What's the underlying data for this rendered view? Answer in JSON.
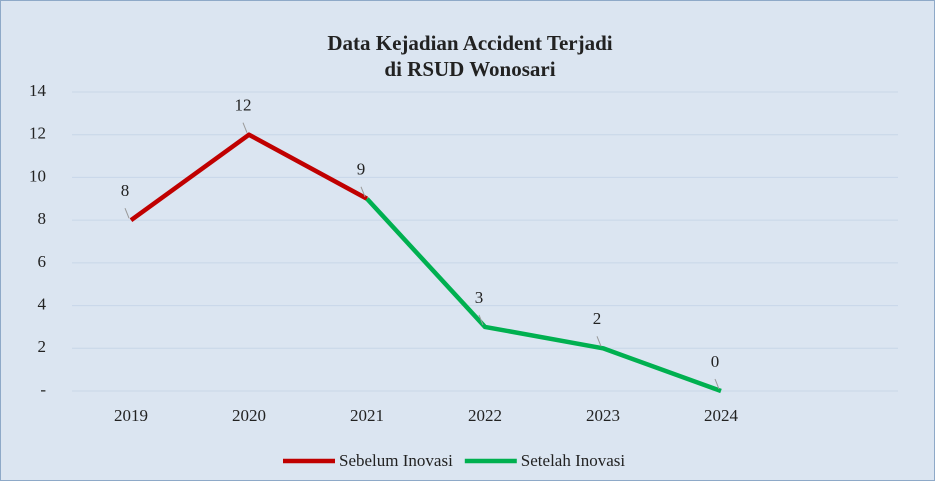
{
  "chart_data": {
    "type": "line",
    "title": "Data Kejadian Accident Terjadi",
    "subtitle": "di RSUD Wonosari",
    "categories": [
      "2019",
      "2020",
      "2021",
      "2022",
      "2023",
      "2024",
      null
    ],
    "series": [
      {
        "name": "Sebelum Inovasi",
        "color": "#c00000",
        "values": [
          8,
          12,
          9,
          null,
          null,
          null,
          null
        ]
      },
      {
        "name": "Setelah Inovasi",
        "color": "#00b050",
        "values": [
          null,
          null,
          9,
          3,
          2,
          0,
          null
        ]
      }
    ],
    "ylim": [
      0,
      14
    ],
    "yticks": [
      {
        "value": 0,
        "label": "-"
      },
      2,
      4,
      6,
      8,
      10,
      12,
      14
    ],
    "grid": true,
    "legend": "bottom"
  }
}
